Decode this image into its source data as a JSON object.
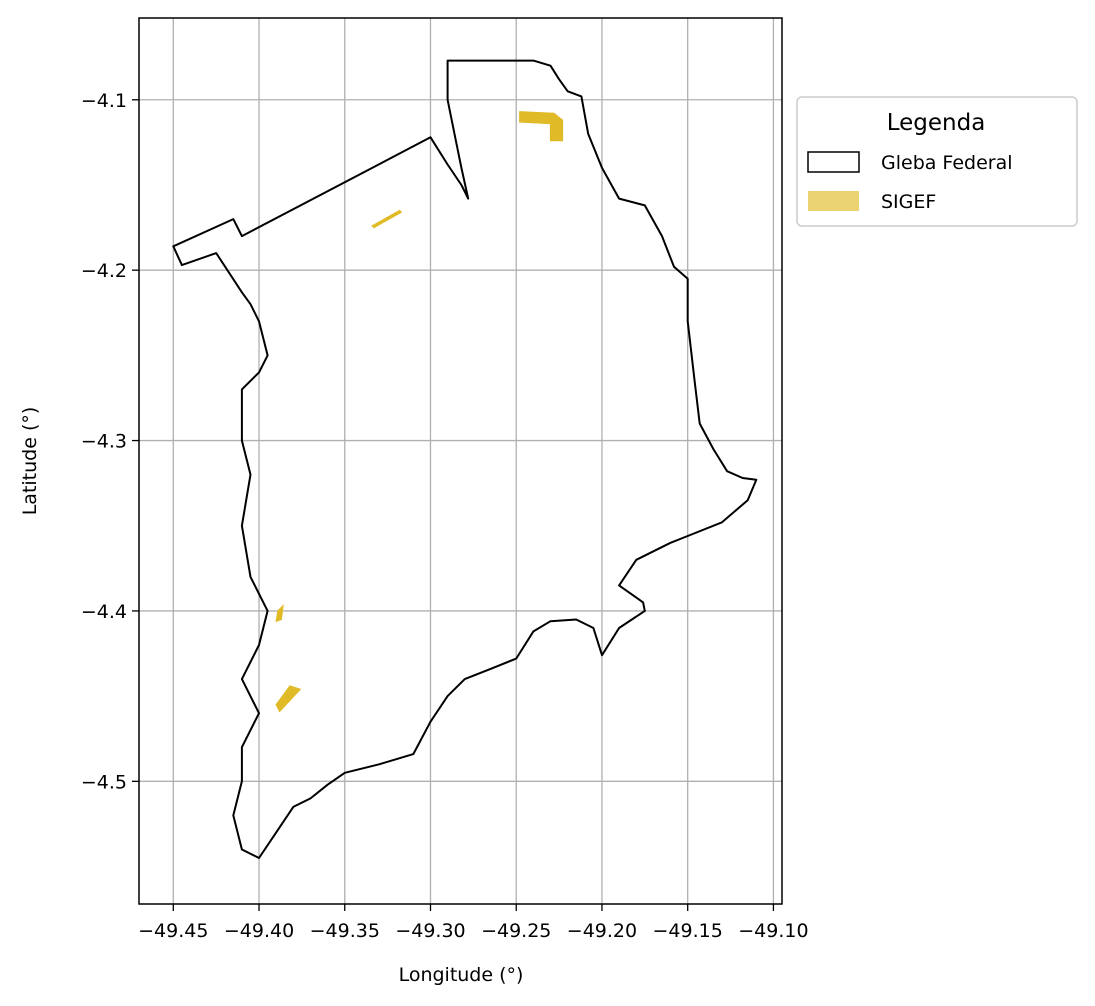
{
  "chart_data": {
    "type": "map",
    "title": "",
    "xlabel": "Longitude (°)",
    "ylabel": "Latitude (°)",
    "xlim": [
      -49.47,
      -49.095
    ],
    "ylim": [
      -4.572,
      -4.052
    ],
    "grid": true,
    "xticks": [
      -49.45,
      -49.4,
      -49.35,
      -49.3,
      -49.25,
      -49.2,
      -49.15,
      -49.1
    ],
    "xtick_labels": [
      "−49.45",
      "−49.40",
      "−49.35",
      "−49.30",
      "−49.25",
      "−49.20",
      "−49.15",
      "−49.10"
    ],
    "yticks": [
      -4.1,
      -4.2,
      -4.3,
      -4.4,
      -4.5
    ],
    "ytick_labels": [
      "−4.1",
      "−4.2",
      "−4.3",
      "−4.4",
      "−4.5"
    ],
    "legend": {
      "title": "Legenda",
      "placement": "outside upper right",
      "entries": [
        {
          "label": "Gleba Federal",
          "style": "outline",
          "color": "#000000"
        },
        {
          "label": "SIGEF",
          "style": "filled",
          "color": "#E0BB27"
        }
      ]
    },
    "layers": [
      {
        "name": "Gleba Federal",
        "kind": "polygon-outline",
        "stroke": "#000000",
        "coordinates": [
          [
            -49.29,
            -4.077
          ],
          [
            -49.24,
            -4.077
          ],
          [
            -49.23,
            -4.08
          ],
          [
            -49.225,
            -4.088
          ],
          [
            -49.22,
            -4.095
          ],
          [
            -49.212,
            -4.098
          ],
          [
            -49.208,
            -4.12
          ],
          [
            -49.2,
            -4.14
          ],
          [
            -49.19,
            -4.158
          ],
          [
            -49.175,
            -4.162
          ],
          [
            -49.165,
            -4.18
          ],
          [
            -49.158,
            -4.198
          ],
          [
            -49.15,
            -4.205
          ],
          [
            -49.15,
            -4.23
          ],
          [
            -49.146,
            -4.265
          ],
          [
            -49.143,
            -4.29
          ],
          [
            -49.135,
            -4.305
          ],
          [
            -49.127,
            -4.318
          ],
          [
            -49.118,
            -4.322
          ],
          [
            -49.11,
            -4.323
          ],
          [
            -49.115,
            -4.335
          ],
          [
            -49.13,
            -4.348
          ],
          [
            -49.15,
            -4.356
          ],
          [
            -49.16,
            -4.36
          ],
          [
            -49.18,
            -4.37
          ],
          [
            -49.19,
            -4.385
          ],
          [
            -49.176,
            -4.395
          ],
          [
            -49.175,
            -4.4
          ],
          [
            -49.19,
            -4.41
          ],
          [
            -49.2,
            -4.426
          ],
          [
            -49.205,
            -4.41
          ],
          [
            -49.215,
            -4.405
          ],
          [
            -49.23,
            -4.406
          ],
          [
            -49.24,
            -4.412
          ],
          [
            -49.25,
            -4.428
          ],
          [
            -49.265,
            -4.434
          ],
          [
            -49.28,
            -4.44
          ],
          [
            -49.29,
            -4.45
          ],
          [
            -49.3,
            -4.465
          ],
          [
            -49.31,
            -4.484
          ],
          [
            -49.33,
            -4.49
          ],
          [
            -49.35,
            -4.495
          ],
          [
            -49.36,
            -4.502
          ],
          [
            -49.37,
            -4.51
          ],
          [
            -49.38,
            -4.515
          ],
          [
            -49.39,
            -4.53
          ],
          [
            -49.4,
            -4.545
          ],
          [
            -49.41,
            -4.54
          ],
          [
            -49.415,
            -4.52
          ],
          [
            -49.41,
            -4.5
          ],
          [
            -49.41,
            -4.48
          ],
          [
            -49.4,
            -4.46
          ],
          [
            -49.41,
            -4.44
          ],
          [
            -49.4,
            -4.42
          ],
          [
            -49.395,
            -4.4
          ],
          [
            -49.405,
            -4.38
          ],
          [
            -49.41,
            -4.35
          ],
          [
            -49.405,
            -4.32
          ],
          [
            -49.41,
            -4.3
          ],
          [
            -49.41,
            -4.27
          ],
          [
            -49.4,
            -4.26
          ],
          [
            -49.395,
            -4.25
          ],
          [
            -49.4,
            -4.23
          ],
          [
            -49.405,
            -4.22
          ],
          [
            -49.41,
            -4.213
          ],
          [
            -49.425,
            -4.19
          ],
          [
            -49.445,
            -4.197
          ],
          [
            -49.45,
            -4.186
          ],
          [
            -49.415,
            -4.17
          ],
          [
            -49.41,
            -4.18
          ],
          [
            -49.3,
            -4.122
          ],
          [
            -49.29,
            -4.138
          ],
          [
            -49.282,
            -4.15
          ],
          [
            -49.278,
            -4.158
          ],
          [
            -49.282,
            -4.14
          ],
          [
            -49.286,
            -4.12
          ],
          [
            -49.29,
            -4.1
          ],
          [
            -49.29,
            -4.077
          ]
        ]
      },
      {
        "name": "SIGEF",
        "kind": "polygon-filled",
        "fill": "#E0BB27",
        "polygons": [
          [
            [
              -49.248,
              -4.107
            ],
            [
              -49.228,
              -4.108
            ],
            [
              -49.223,
              -4.112
            ],
            [
              -49.223,
              -4.124
            ],
            [
              -49.23,
              -4.124
            ],
            [
              -49.23,
              -4.114
            ],
            [
              -49.248,
              -4.113
            ]
          ],
          [
            [
              -49.334,
              -4.174
            ],
            [
              -49.318,
              -4.165
            ],
            [
              -49.317,
              -4.166
            ],
            [
              -49.333,
              -4.175
            ]
          ],
          [
            [
              -49.389,
              -4.4
            ],
            [
              -49.386,
              -4.397
            ],
            [
              -49.387,
              -4.405
            ],
            [
              -49.39,
              -4.406
            ]
          ],
          [
            [
              -49.382,
              -4.444
            ],
            [
              -49.376,
              -4.446
            ],
            [
              -49.388,
              -4.459
            ],
            [
              -49.39,
              -4.455
            ]
          ]
        ]
      }
    ]
  }
}
